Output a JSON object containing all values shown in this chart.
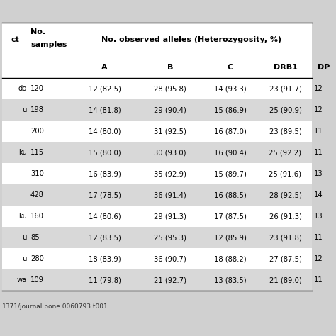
{
  "rows": [
    [
      "do",
      "120",
      "12 (82.5)",
      "28 (95.8)",
      "14 (93.3)",
      "23 (91.7)",
      "12"
    ],
    [
      "u",
      "198",
      "14 (81.8)",
      "29 (90.4)",
      "15 (86.9)",
      "25 (90.9)",
      "12"
    ],
    [
      "",
      "200",
      "14 (80.0)",
      "31 (92.5)",
      "16 (87.0)",
      "23 (89.5)",
      "11"
    ],
    [
      "ku",
      "115",
      "15 (80.0)",
      "30 (93.0)",
      "16 (90.4)",
      "25 (92.2)",
      "11"
    ],
    [
      "",
      "310",
      "16 (83.9)",
      "35 (92.9)",
      "15 (89.7)",
      "25 (91.6)",
      "13"
    ],
    [
      "",
      "428",
      "17 (78.5)",
      "36 (91.4)",
      "16 (88.5)",
      "28 (92.5)",
      "14"
    ],
    [
      "ku",
      "160",
      "14 (80.6)",
      "29 (91.3)",
      "17 (87.5)",
      "26 (91.3)",
      "13"
    ],
    [
      "u",
      "85",
      "12 (83.5)",
      "25 (95.3)",
      "12 (85.9)",
      "23 (91.8)",
      "11"
    ],
    [
      "u",
      "280",
      "18 (83.9)",
      "36 (90.7)",
      "18 (88.2)",
      "27 (87.5)",
      "12"
    ],
    [
      "wa",
      "109",
      "11 (79.8)",
      "21 (92.7)",
      "13 (83.5)",
      "21 (89.0)",
      "11"
    ]
  ],
  "shaded_rows": [
    1,
    3,
    5,
    7,
    9
  ],
  "shaded_color": "#d8d8d8",
  "white_color": "#ffffff",
  "bg_color": "#d0d0d0",
  "text_color": "#000000",
  "font_size": 7.2,
  "header_font_size": 8.0,
  "footer_text": "1371/journal.pone.0060793.t001",
  "top_margin_color": "#d0d0d0"
}
